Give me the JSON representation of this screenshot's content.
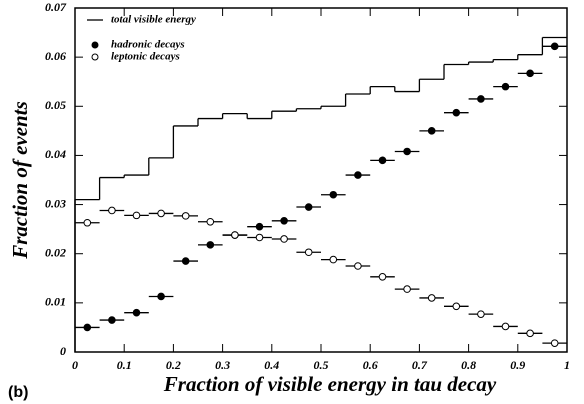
{
  "chart_data": {
    "type": "histogram",
    "panel_label": "(b)",
    "xlabel": "Fraction of visible energy in tau decay",
    "ylabel": "Fraction of events",
    "bins": [
      0,
      0.05,
      0.1,
      0.15,
      0.2,
      0.25,
      0.3,
      0.35,
      0.4,
      0.45,
      0.5,
      0.55,
      0.6,
      0.65,
      0.7,
      0.75,
      0.8,
      0.85,
      0.9,
      0.95,
      1
    ],
    "series": [
      {
        "name": "total visible energy",
        "marker": "step",
        "color": "#000000",
        "values": [
          0.031,
          0.0355,
          0.036,
          0.0395,
          0.046,
          0.0475,
          0.0485,
          0.0475,
          0.049,
          0.0495,
          0.05,
          0.0525,
          0.054,
          0.053,
          0.0555,
          0.0585,
          0.059,
          0.0595,
          0.0605,
          0.064
        ]
      },
      {
        "name": "hadronic decays",
        "marker": "filled-circle",
        "color": "#000000",
        "values": [
          0.005,
          0.0065,
          0.008,
          0.0113,
          0.0185,
          0.0218,
          0.0238,
          0.0255,
          0.0267,
          0.0295,
          0.032,
          0.036,
          0.039,
          0.0408,
          0.045,
          0.0487,
          0.0515,
          0.054,
          0.0567,
          0.0622
        ]
      },
      {
        "name": "leptonic decays",
        "marker": "open-circle",
        "color": "#000000",
        "values": [
          0.0263,
          0.0288,
          0.0278,
          0.0282,
          0.0277,
          0.0265,
          0.0238,
          0.0233,
          0.023,
          0.0203,
          0.0188,
          0.0175,
          0.0153,
          0.0128,
          0.011,
          0.0093,
          0.0077,
          0.0052,
          0.0038,
          0.0018
        ]
      }
    ],
    "xlim": [
      0,
      1
    ],
    "xticks": [
      0,
      0.1,
      0.2,
      0.3,
      0.4,
      0.5,
      0.6,
      0.7,
      0.8,
      0.9,
      1
    ],
    "ylim": [
      0,
      0.07
    ],
    "yticks": [
      0,
      0.01,
      0.02,
      0.03,
      0.04,
      0.05,
      0.06,
      0.07
    ],
    "legend": "upper left"
  }
}
